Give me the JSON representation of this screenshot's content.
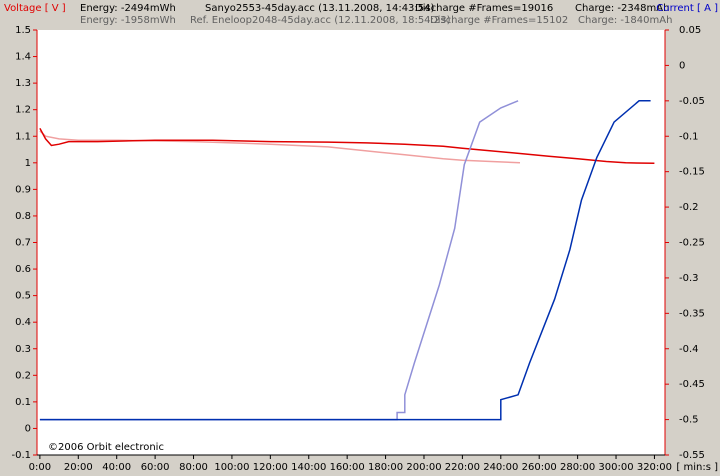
{
  "chart_data": {
    "type": "line",
    "header": {
      "row1": [
        "Energy: -2494mWh",
        "Sanyo2553-45day.acc (13.11.2008, 14:43:54)",
        "Discharge  #Frames=19016",
        "Charge: -2348mAh"
      ],
      "row2": [
        "Energy: -1958mWh",
        "Ref. Eneloop2048-45day.acc (12.11.2008, 18:54:23)",
        "Discharge  #Frames=15102",
        "Charge: -1840mAh"
      ]
    },
    "y_label": "Voltage [ V ]",
    "y2_label": "Current [ A ]",
    "x_label": "[ min:s ]",
    "annotation": "©2006 Orbit electronic",
    "y_label_color": "#e00000",
    "y2_label_color": "#0000c8",
    "axis_color": "#e00000",
    "xlim": [
      -1.5,
      325.5
    ],
    "xticks": [
      {
        "value": 0,
        "label": "0:00"
      },
      {
        "value": 20,
        "label": "20:00"
      },
      {
        "value": 40,
        "label": "40:00"
      },
      {
        "value": 60,
        "label": "60:00"
      },
      {
        "value": 80,
        "label": "80:00"
      },
      {
        "value": 100,
        "label": "100:00"
      },
      {
        "value": 120,
        "label": "120:00"
      },
      {
        "value": 140,
        "label": "140:00"
      },
      {
        "value": 160,
        "label": "160:00"
      },
      {
        "value": 180,
        "label": "180:00"
      },
      {
        "value": 200,
        "label": "200:00"
      },
      {
        "value": 220,
        "label": "220:00"
      },
      {
        "value": 240,
        "label": "240:00"
      },
      {
        "value": 260,
        "label": "260:00"
      },
      {
        "value": 280,
        "label": "280:00"
      },
      {
        "value": 300,
        "label": "300:00"
      },
      {
        "value": 320,
        "label": "320:00"
      }
    ],
    "ylim": [
      -0.1,
      1.5
    ],
    "yticks": [
      1.5,
      1.4,
      1.3,
      1.2,
      1.1,
      1,
      0.9,
      0.8,
      0.7,
      0.6,
      0.5,
      0.4,
      0.3,
      0.2,
      0.1,
      0,
      -0.1
    ],
    "y2lim": [
      -0.55,
      0.05
    ],
    "y2ticks": [
      0.05,
      0,
      -0.05,
      -0.1,
      -0.15,
      -0.2,
      -0.25,
      -0.3,
      -0.35,
      -0.4,
      -0.45,
      -0.5,
      -0.55
    ],
    "series": [
      {
        "color": "#f0a0a0",
        "x": [
          0,
          3,
          10,
          20,
          40,
          80,
          120,
          150,
          170,
          190,
          210,
          220,
          235,
          250
        ],
        "values": [
          1.12,
          1.1,
          1.09,
          1.085,
          1.085,
          1.08,
          1.07,
          1.06,
          1.045,
          1.03,
          1.015,
          1.01,
          1.005,
          1.0
        ]
      },
      {
        "color": "#e00000",
        "x": [
          0,
          3,
          6,
          10,
          15,
          30,
          60,
          90,
          120,
          150,
          170,
          190,
          210,
          220,
          235,
          250,
          265,
          280,
          295,
          305,
          320
        ],
        "values": [
          1.13,
          1.09,
          1.065,
          1.07,
          1.08,
          1.08,
          1.085,
          1.085,
          1.08,
          1.078,
          1.075,
          1.07,
          1.062,
          1.055,
          1.045,
          1.035,
          1.025,
          1.015,
          1.005,
          1.0,
          0.998
        ]
      },
      {
        "color": "#9090d8",
        "axis": "y2",
        "x": [
          0,
          186,
          186,
          190,
          190,
          195,
          208,
          216,
          221,
          229,
          240,
          249
        ],
        "values": [
          -0.5,
          -0.5,
          -0.49,
          -0.49,
          -0.465,
          -0.42,
          -0.31,
          -0.23,
          -0.14,
          -0.08,
          -0.06,
          -0.05
        ]
      },
      {
        "color": "#0030b0",
        "axis": "y2",
        "x": [
          0,
          240,
          240,
          249,
          255,
          268,
          276,
          282,
          290,
          299,
          312,
          318
        ],
        "values": [
          -0.5,
          -0.5,
          -0.472,
          -0.465,
          -0.42,
          -0.33,
          -0.26,
          -0.19,
          -0.13,
          -0.08,
          -0.05,
          -0.05
        ]
      }
    ]
  }
}
